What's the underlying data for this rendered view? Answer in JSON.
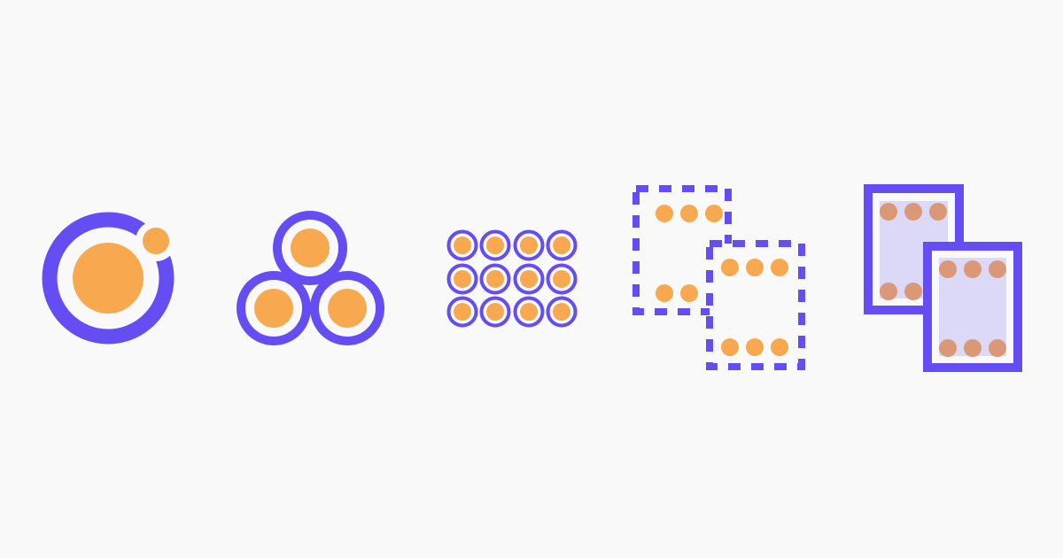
{
  "colors": {
    "background": "#F9F9F9",
    "primary": "#654DF4",
    "accent": "#F8A84E",
    "muted_dot": "#DA9877",
    "card_fill": "#DCD8F7",
    "gap": "#F9F9F9"
  },
  "icons": [
    "ionic-logo-icon",
    "three-circles-cluster-icon",
    "circle-grid-icon",
    "dashed-frames-icon",
    "solid-frames-icon"
  ]
}
